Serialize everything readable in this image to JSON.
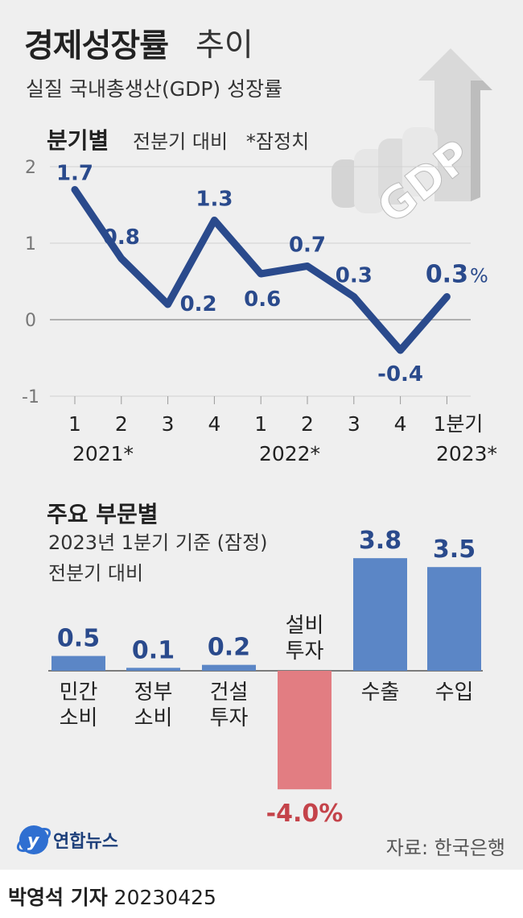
{
  "title": {
    "bold": "경제성장률",
    "light": "추이"
  },
  "subtitle": "실질 국내총생산(GDP) 성장률",
  "quarterly": {
    "label": "분기별",
    "note": "전분기 대비   *잠정치",
    "unit": "%"
  },
  "sector": {
    "label": "주요 부문별",
    "note1": "2023년 1분기 기준 (잠정)",
    "note2": "전분기 대비"
  },
  "decor_text": "GDP",
  "logo_text": "연합뉴스",
  "source": "자료: 한국은행",
  "byline": {
    "author": "박영석 기자",
    "date": "20230425"
  },
  "colors": {
    "line": "#2a4a8c",
    "bar_positive": "#5b86c6",
    "bar_negative": "#e27d82",
    "negative_label": "#c4434a"
  },
  "chart_data": [
    {
      "type": "line",
      "title": "분기별",
      "x": [
        "1",
        "2",
        "3",
        "4",
        "1",
        "2",
        "3",
        "4",
        "1분기"
      ],
      "year_labels": [
        "2021*",
        "2022*",
        "2023*"
      ],
      "value_labels": [
        "1.7",
        "0.8",
        "0.2",
        "1.3",
        "0.6",
        "0.7",
        "0.3",
        "-0.4",
        "0.3"
      ],
      "series": [
        {
          "values": [
            1.7,
            0.8,
            0.2,
            1.3,
            0.6,
            0.7,
            0.3,
            -0.4,
            0.3
          ]
        }
      ],
      "yticks": [
        "2",
        "1",
        "0",
        "-1"
      ],
      "ylim": [
        -1,
        2
      ],
      "grid": true
    },
    {
      "type": "bar",
      "title": "주요 부문별",
      "categories": [
        "민간\n소비",
        "정부\n소비",
        "건설\n투자",
        "설비\n투자",
        "수출",
        "수입"
      ],
      "values": [
        0.5,
        0.1,
        0.2,
        -4.0,
        3.8,
        3.5
      ],
      "value_labels": [
        "0.5",
        "0.1",
        "0.2",
        "-4.0%",
        "3.8",
        "3.5"
      ]
    }
  ]
}
